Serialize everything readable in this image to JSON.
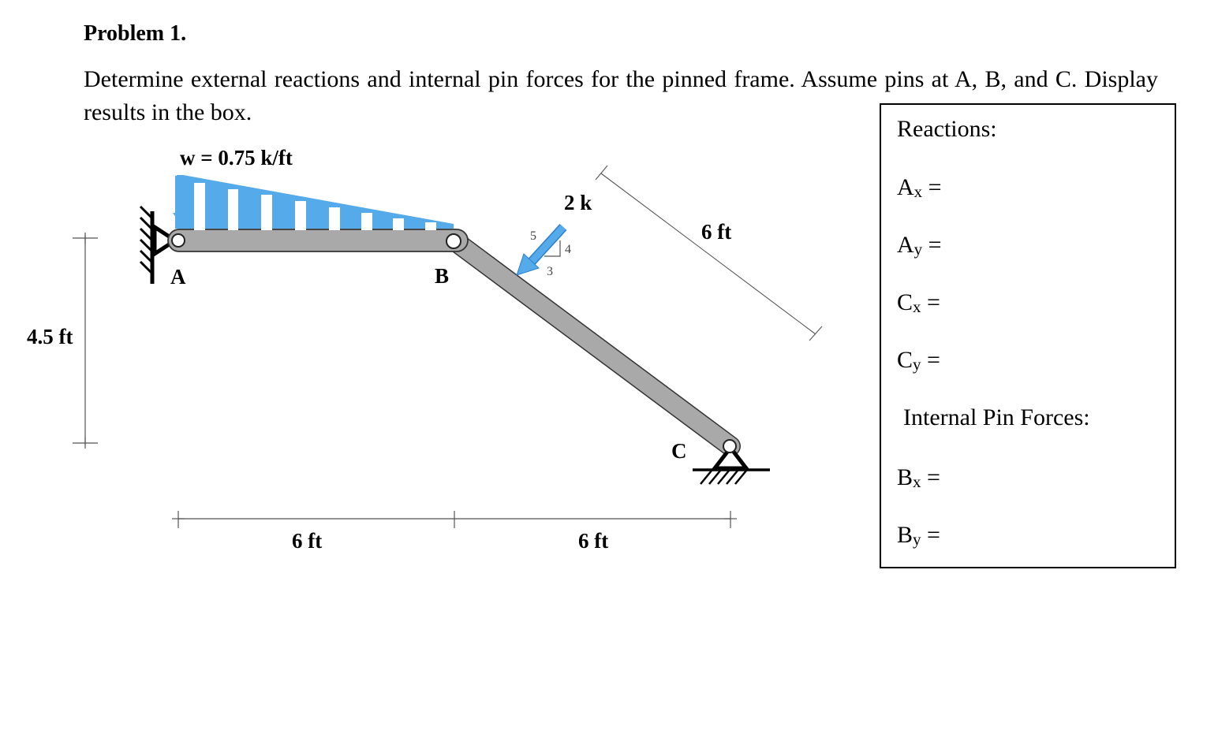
{
  "problem": {
    "title": "Problem 1.",
    "description": "Determine external reactions and internal pin forces for the pinned frame. Assume pins at A, B, and C. Display results in the box."
  },
  "diagram": {
    "load_label": "w = 0.75 k/ft",
    "point_load_label": "2 k",
    "slope_triangle": {
      "hyp": "5",
      "rise": "4",
      "run": "3"
    },
    "pins": {
      "a": "A",
      "b": "B",
      "c": "C"
    },
    "dims": {
      "height": "4.5 ft",
      "span_ab": "6 ft",
      "span_bc": "6 ft",
      "member_bc": "6 ft"
    },
    "colors": {
      "member": "#a9a9a9",
      "load": "#55aaea",
      "outline": "#333333"
    }
  },
  "results_box": {
    "reactions_heading": "Reactions:",
    "reactions": [
      {
        "base": "A",
        "sub": "x",
        "suffix": " ="
      },
      {
        "base": "A",
        "sub": "y",
        "suffix": " ="
      },
      {
        "base": "C",
        "sub": "x",
        "suffix": " ="
      },
      {
        "base": "C",
        "sub": "y",
        "suffix": " ="
      }
    ],
    "internal_heading": "Internal Pin Forces:",
    "internal": [
      {
        "base": "B",
        "sub": "x",
        "suffix": " ="
      },
      {
        "base": "B",
        "sub": "y",
        "suffix": " ="
      }
    ]
  }
}
